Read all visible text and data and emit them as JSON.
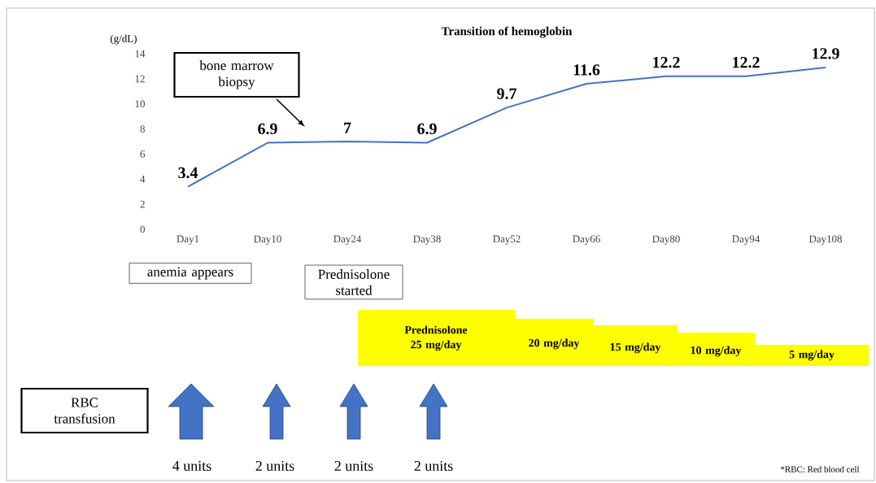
{
  "chart_data": {
    "type": "line",
    "title": "Transition of hemoglobin",
    "ylabel": "(g/dL)",
    "categories": [
      "Day1",
      "Day10",
      "Day24",
      "Day38",
      "Day52",
      "Day66",
      "Day80",
      "Day94",
      "Day108"
    ],
    "values": [
      3.4,
      6.9,
      7,
      6.9,
      9.7,
      11.6,
      12.2,
      12.2,
      12.9
    ],
    "color": "#4472c4",
    "marker": "none",
    "line_style": "solid",
    "data_labels": true,
    "grid": false,
    "ylim": [
      0,
      14
    ],
    "yticks": [
      0,
      2,
      4,
      6,
      8,
      10,
      12,
      14
    ],
    "annotations": [
      "bone marrow biopsy",
      "anemia appears",
      "Prednisolone started",
      "Prednisolone 25 mg/day",
      "20 mg/day",
      "15 mg/day",
      "10 mg/day",
      "5 mg/day",
      "RBC transfusion",
      "4 units",
      "2 units",
      "2 units",
      "2 units",
      "*RBC: Red blood cell"
    ]
  }
}
